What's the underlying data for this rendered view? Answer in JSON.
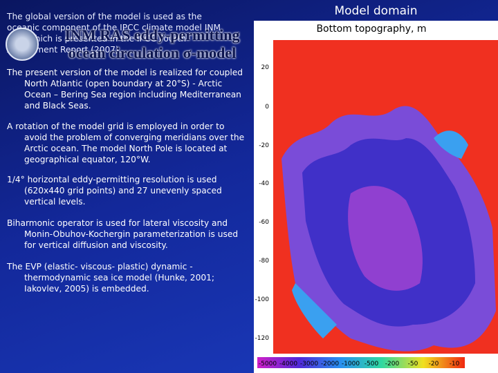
{
  "slide": {
    "title_lines": [
      "INM RAS eddy-permitting",
      "ocean circulation σ-model"
    ],
    "intro": "The global version of the model is used as the oceanic component of the IPCC climate model INM CM3 which is presented in the IPCC Fourth Assessment Report (2007).",
    "paragraphs": [
      "The present version of the model is realized for coupled North Atlantic (open boundary at 20°S) - Arctic Ocean – Bering Sea region including Mediterranean and Black Seas.",
      "A rotation of the model grid is employed in order to avoid the problem of converging meridians over the Arctic ocean. The model North Pole is located at geographical equator, 120°W.",
      "1/4° horizontal eddy-permitting resolution is used (620x440 grid points) and 27 unevenly spaced vertical levels.",
      "Biharmonic operator is used for lateral viscosity and Monin-Obuhov-Kochergin parameterization is used for vertical diffusion and viscosity.",
      "The EVP (elastic- viscous- plastic) dynamic - thermodynamic sea ice model (Hunke, 2001; Iakovlev, 2005) is embedded."
    ],
    "figure": {
      "caption": "Model domain",
      "title": "Bottom topography, m",
      "y_labels": [
        "20",
        "0",
        "-20",
        "-40",
        "-60",
        "-80",
        "-100",
        "-120"
      ],
      "colorbar_labels": [
        "-5000",
        "-4000",
        "-3000",
        "-2000",
        "-1000",
        "-500",
        "-200",
        "-50",
        "-20",
        "-10"
      ]
    }
  }
}
